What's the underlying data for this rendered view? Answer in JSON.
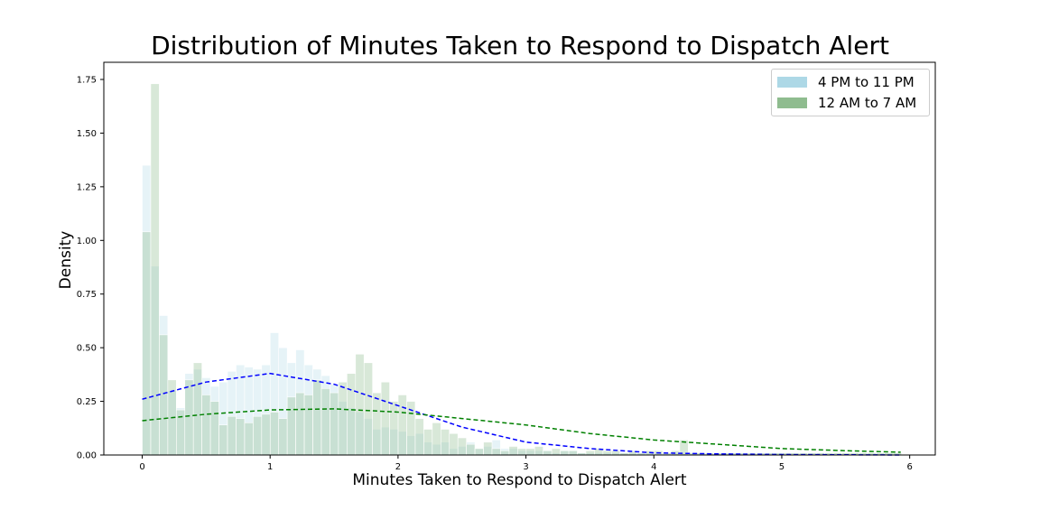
{
  "chart_data": {
    "type": "bar",
    "title": "Distribution of Minutes Taken to Respond to Dispatch Alert",
    "xlabel": "Minutes Taken to Respond to Dispatch Alert",
    "ylabel": "Density",
    "xlim": [
      -0.3,
      6.2
    ],
    "ylim": [
      0,
      1.83
    ],
    "xticks": [
      "0",
      "1",
      "2",
      "3",
      "4",
      "5",
      "6"
    ],
    "yticks": [
      "0.00",
      "0.25",
      "0.50",
      "0.75",
      "1.00",
      "1.25",
      "1.50",
      "1.75"
    ],
    "grid": false,
    "legend_position": "top-right",
    "bin_width": 0.0667,
    "bin_start": 0,
    "series": [
      {
        "name": "4 PM to 11 PM",
        "color": "#add8e6",
        "values": [
          1.35,
          0.88,
          0.65,
          0.3,
          0.22,
          0.38,
          0.4,
          0.36,
          0.32,
          0.34,
          0.39,
          0.42,
          0.41,
          0.4,
          0.42,
          0.57,
          0.5,
          0.43,
          0.49,
          0.42,
          0.4,
          0.37,
          0.33,
          0.25,
          0.22,
          0.2,
          0.17,
          0.12,
          0.13,
          0.12,
          0.11,
          0.09,
          0.1,
          0.06,
          0.05,
          0.06,
          0.03,
          0.04,
          0.06,
          0.03,
          0.04,
          0.07,
          0.03,
          0.03,
          0.02,
          0.02,
          0.02,
          0.02,
          0.01,
          0.02,
          0.02,
          0.01,
          0.01,
          0.01,
          0.01,
          0.01,
          0.01,
          0.01,
          0.01,
          0.01,
          0.01,
          0.01,
          0.01,
          0.01,
          0.01,
          0.01,
          0.01,
          0.01,
          0.01,
          0.01,
          0.01,
          0.01,
          0.01,
          0.01,
          0.01,
          0.01,
          0.01,
          0.01,
          0.01,
          0.01,
          0.01,
          0.01,
          0.01,
          0.01,
          0.01,
          0.01,
          0.01,
          0.01,
          0.01
        ]
      },
      {
        "name": "12 AM to 7 AM",
        "color": "#8fbc8f",
        "values": [
          1.04,
          1.73,
          0.56,
          0.35,
          0.21,
          0.35,
          0.43,
          0.28,
          0.25,
          0.14,
          0.18,
          0.17,
          0.15,
          0.18,
          0.19,
          0.2,
          0.17,
          0.27,
          0.29,
          0.28,
          0.35,
          0.31,
          0.29,
          0.34,
          0.38,
          0.47,
          0.43,
          0.29,
          0.34,
          0.25,
          0.28,
          0.25,
          0.17,
          0.12,
          0.15,
          0.12,
          0.1,
          0.08,
          0.05,
          0.03,
          0.06,
          0.03,
          0.02,
          0.04,
          0.03,
          0.03,
          0.04,
          0.02,
          0.03,
          0.02,
          0.02,
          0.01,
          0.02,
          0.03,
          0.02,
          0.02,
          0.01,
          0.02,
          0.01,
          0.02,
          0.02,
          0.01,
          0.02,
          0.07,
          0.01,
          0.01,
          0.01,
          0.01,
          0.01,
          0.01,
          0.01,
          0.01,
          0.01,
          0.01,
          0.01,
          0.01,
          0.01,
          0.01,
          0.01,
          0.01,
          0.01,
          0.01,
          0.01,
          0.01,
          0.01,
          0.01,
          0.01,
          0.01,
          0.01
        ]
      }
    ],
    "fit_curves": [
      {
        "color": "#0000ff",
        "style": "dashed",
        "x": [
          0,
          0.5,
          1.0,
          1.5,
          2.0,
          2.5,
          3.0,
          3.5,
          4.0,
          4.5,
          5.0,
          5.5,
          5.93
        ],
        "y": [
          0.26,
          0.34,
          0.38,
          0.33,
          0.23,
          0.13,
          0.06,
          0.03,
          0.01,
          0.005,
          0.002,
          0.001,
          0.0
        ]
      },
      {
        "color": "#008000",
        "style": "dashed",
        "x": [
          0,
          0.5,
          1.0,
          1.5,
          2.0,
          2.5,
          3.0,
          3.5,
          4.0,
          4.5,
          5.0,
          5.5,
          5.93
        ],
        "y": [
          0.16,
          0.19,
          0.21,
          0.215,
          0.2,
          0.17,
          0.14,
          0.1,
          0.07,
          0.05,
          0.03,
          0.02,
          0.013
        ]
      }
    ]
  }
}
